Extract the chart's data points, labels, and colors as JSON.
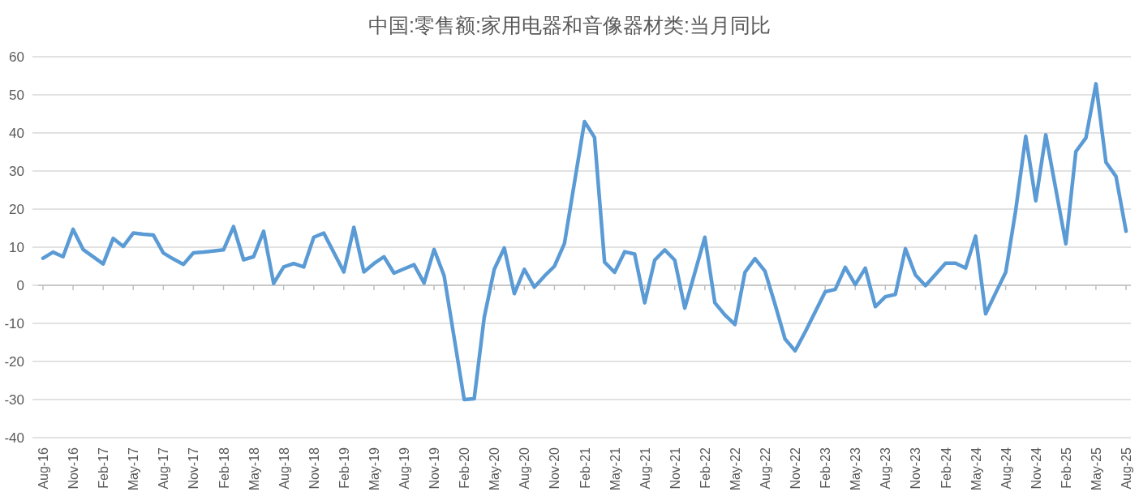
{
  "chart_data": {
    "type": "line",
    "title": "中国:零售额:家用电器和音像器材类:当月同比",
    "x": [
      "2016-08",
      "2016-09",
      "2016-10",
      "2016-11",
      "2016-12",
      "2017-02",
      "2017-03",
      "2017-04",
      "2017-05",
      "2017-06",
      "2017-07",
      "2017-08",
      "2017-09",
      "2017-10",
      "2017-11",
      "2017-12",
      "2018-02",
      "2018-03",
      "2018-04",
      "2018-05",
      "2018-06",
      "2018-07",
      "2018-08",
      "2018-09",
      "2018-10",
      "2018-11",
      "2018-12",
      "2019-02",
      "2019-03",
      "2019-04",
      "2019-05",
      "2019-06",
      "2019-07",
      "2019-08",
      "2019-09",
      "2019-10",
      "2019-11",
      "2019-12",
      "2020-02",
      "2020-03",
      "2020-04",
      "2020-05",
      "2020-06",
      "2020-07",
      "2020-08",
      "2020-09",
      "2020-10",
      "2020-11",
      "2020-12",
      "2021-02",
      "2021-03",
      "2021-04",
      "2021-05",
      "2021-06",
      "2021-07",
      "2021-08",
      "2021-09",
      "2021-10",
      "2021-11",
      "2021-12",
      "2022-02",
      "2022-03",
      "2022-04",
      "2022-05",
      "2022-06",
      "2022-07",
      "2022-08",
      "2022-09",
      "2022-10",
      "2022-11",
      "2022-12",
      "2023-02",
      "2023-03",
      "2023-04",
      "2023-05",
      "2023-06",
      "2023-07",
      "2023-08",
      "2023-09",
      "2023-10",
      "2023-11",
      "2023-12",
      "2024-02",
      "2024-03",
      "2024-04",
      "2024-05",
      "2024-06",
      "2024-07",
      "2024-08",
      "2024-09",
      "2024-10",
      "2024-11",
      "2024-12",
      "2025-02",
      "2025-03",
      "2025-04",
      "2025-05",
      "2025-06",
      "2025-07",
      "2025-08"
    ],
    "series": [
      {
        "color": "#5b9bd5",
        "values": [
          7.1,
          8.7,
          7.5,
          14.7,
          9.4,
          5.6,
          12.3,
          10.2,
          13.7,
          13.4,
          13.2,
          8.5,
          6.9,
          5.5,
          8.5,
          8.7,
          9.3,
          15.4,
          6.7,
          7.5,
          14.2,
          0.5,
          4.8,
          5.7,
          4.8,
          12.6,
          13.7,
          3.5,
          15.2,
          3.5,
          5.7,
          7.5,
          3.2,
          4.3,
          5.4,
          0.6,
          9.4,
          2.5,
          -30.0,
          -29.8,
          -8.4,
          4.2,
          9.8,
          -2.2,
          4.2,
          -0.5,
          2.4,
          5.0,
          11.0,
          43.0,
          38.8,
          6.1,
          3.4,
          8.8,
          8.2,
          -4.6,
          6.6,
          9.3,
          6.6,
          -6.0,
          12.6,
          -4.6,
          -7.8,
          -10.3,
          3.4,
          7.0,
          3.7,
          -5.0,
          -14.1,
          -17.2,
          -12.3,
          -1.7,
          -1.1,
          4.7,
          0.2,
          4.5,
          -5.6,
          -3.0,
          -2.4,
          9.6,
          2.7,
          -0.1,
          5.8,
          5.8,
          4.5,
          12.9,
          -7.5,
          -2.0,
          3.4,
          19.7,
          39.1,
          22.2,
          39.5,
          10.9,
          35.1,
          38.7,
          52.9,
          32.3,
          28.6,
          14.2
        ]
      }
    ],
    "xlim": [
      "2016-08",
      "2025-08"
    ],
    "xticks": [
      {
        "value": "2016-08",
        "label": "Aug-16"
      },
      {
        "value": "2016-11",
        "label": "Nov-16"
      },
      {
        "value": "2017-02",
        "label": "Feb-17"
      },
      {
        "value": "2017-05",
        "label": "May-17"
      },
      {
        "value": "2017-08",
        "label": "Aug-17"
      },
      {
        "value": "2017-11",
        "label": "Nov-17"
      },
      {
        "value": "2018-02",
        "label": "Feb-18"
      },
      {
        "value": "2018-05",
        "label": "May-18"
      },
      {
        "value": "2018-08",
        "label": "Aug-18"
      },
      {
        "value": "2018-11",
        "label": "Nov-18"
      },
      {
        "value": "2019-02",
        "label": "Feb-19"
      },
      {
        "value": "2019-05",
        "label": "May-19"
      },
      {
        "value": "2019-08",
        "label": "Aug-19"
      },
      {
        "value": "2019-11",
        "label": "Nov-19"
      },
      {
        "value": "2020-02",
        "label": "Feb-20"
      },
      {
        "value": "2020-05",
        "label": "May-20"
      },
      {
        "value": "2020-08",
        "label": "Aug-20"
      },
      {
        "value": "2020-11",
        "label": "Nov-20"
      },
      {
        "value": "2021-02",
        "label": "Feb-21"
      },
      {
        "value": "2021-05",
        "label": "May-21"
      },
      {
        "value": "2021-08",
        "label": "Aug-21"
      },
      {
        "value": "2021-11",
        "label": "Nov-21"
      },
      {
        "value": "2022-02",
        "label": "Feb-22"
      },
      {
        "value": "2022-05",
        "label": "May-22"
      },
      {
        "value": "2022-08",
        "label": "Aug-22"
      },
      {
        "value": "2022-11",
        "label": "Nov-22"
      },
      {
        "value": "2023-02",
        "label": "Feb-23"
      },
      {
        "value": "2023-05",
        "label": "May-23"
      },
      {
        "value": "2023-08",
        "label": "Aug-23"
      },
      {
        "value": "2023-11",
        "label": "Nov-23"
      },
      {
        "value": "2024-02",
        "label": "Feb-24"
      },
      {
        "value": "2024-05",
        "label": "May-24"
      },
      {
        "value": "2024-08",
        "label": "Aug-24"
      },
      {
        "value": "2024-11",
        "label": "Nov-24"
      },
      {
        "value": "2025-02",
        "label": "Feb-25"
      },
      {
        "value": "2025-05",
        "label": "May-25"
      },
      {
        "value": "2025-08",
        "label": "Aug-25"
      }
    ],
    "ylim": [
      -40,
      60
    ],
    "yticks": [
      -40,
      -30,
      -20,
      -10,
      0,
      10,
      20,
      30,
      40,
      50,
      60
    ],
    "grid": "y",
    "marker": "none",
    "line_style": "solid"
  }
}
